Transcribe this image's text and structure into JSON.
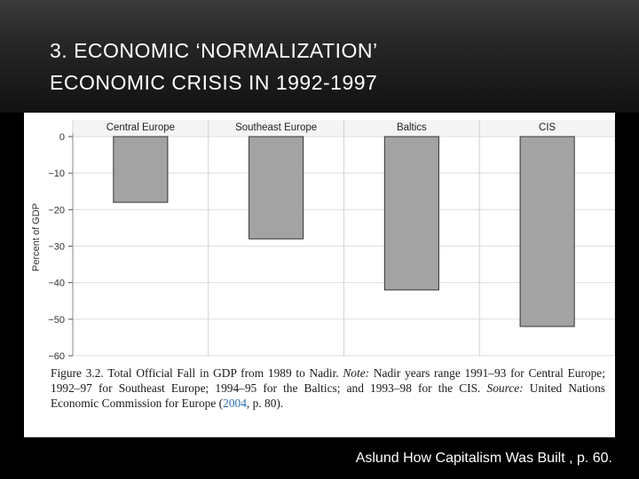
{
  "slide": {
    "title_line1": "3. ECONOMIC ‘NORMALIZATION’",
    "title_line2": "ECONOMIC CRISIS IN 1992-1997",
    "source": "Aslund How Capitalism Was Built , p. 60."
  },
  "figure": {
    "label": "Figure 3.2.",
    "title": "Total Official Fall in GDP from 1989 to Nadir.",
    "note_label": "Note:",
    "note_text": "Nadir years range 1991–93 for Central Europe; 1992–97 for Southeast Europe; 1994–95 for the Baltics; and 1993–98 for the CIS.",
    "source_label": "Source:",
    "source_text": "United Nations Economic Commission for Europe (",
    "source_year": "2004",
    "source_tail": ", p. 80)."
  },
  "chart_data": {
    "type": "bar",
    "title": "",
    "categories": [
      "Central Europe",
      "Southeast Europe",
      "Baltics",
      "CIS"
    ],
    "values": [
      -18,
      -28,
      -42,
      -52
    ],
    "ylabel": "Percent of GDP",
    "xlabel": "",
    "ylim": [
      -60,
      0
    ],
    "yticks": [
      0,
      -10,
      -20,
      -30,
      -40,
      -50,
      -60
    ],
    "ytick_labels": [
      "0",
      "−10",
      "−20",
      "−30",
      "−40",
      "−50",
      "−60"
    ],
    "grid": true,
    "category_position": "top",
    "colors": {
      "bar": "#a3a3a3",
      "bar_edge": "#333333",
      "grid": "#dedede"
    }
  }
}
